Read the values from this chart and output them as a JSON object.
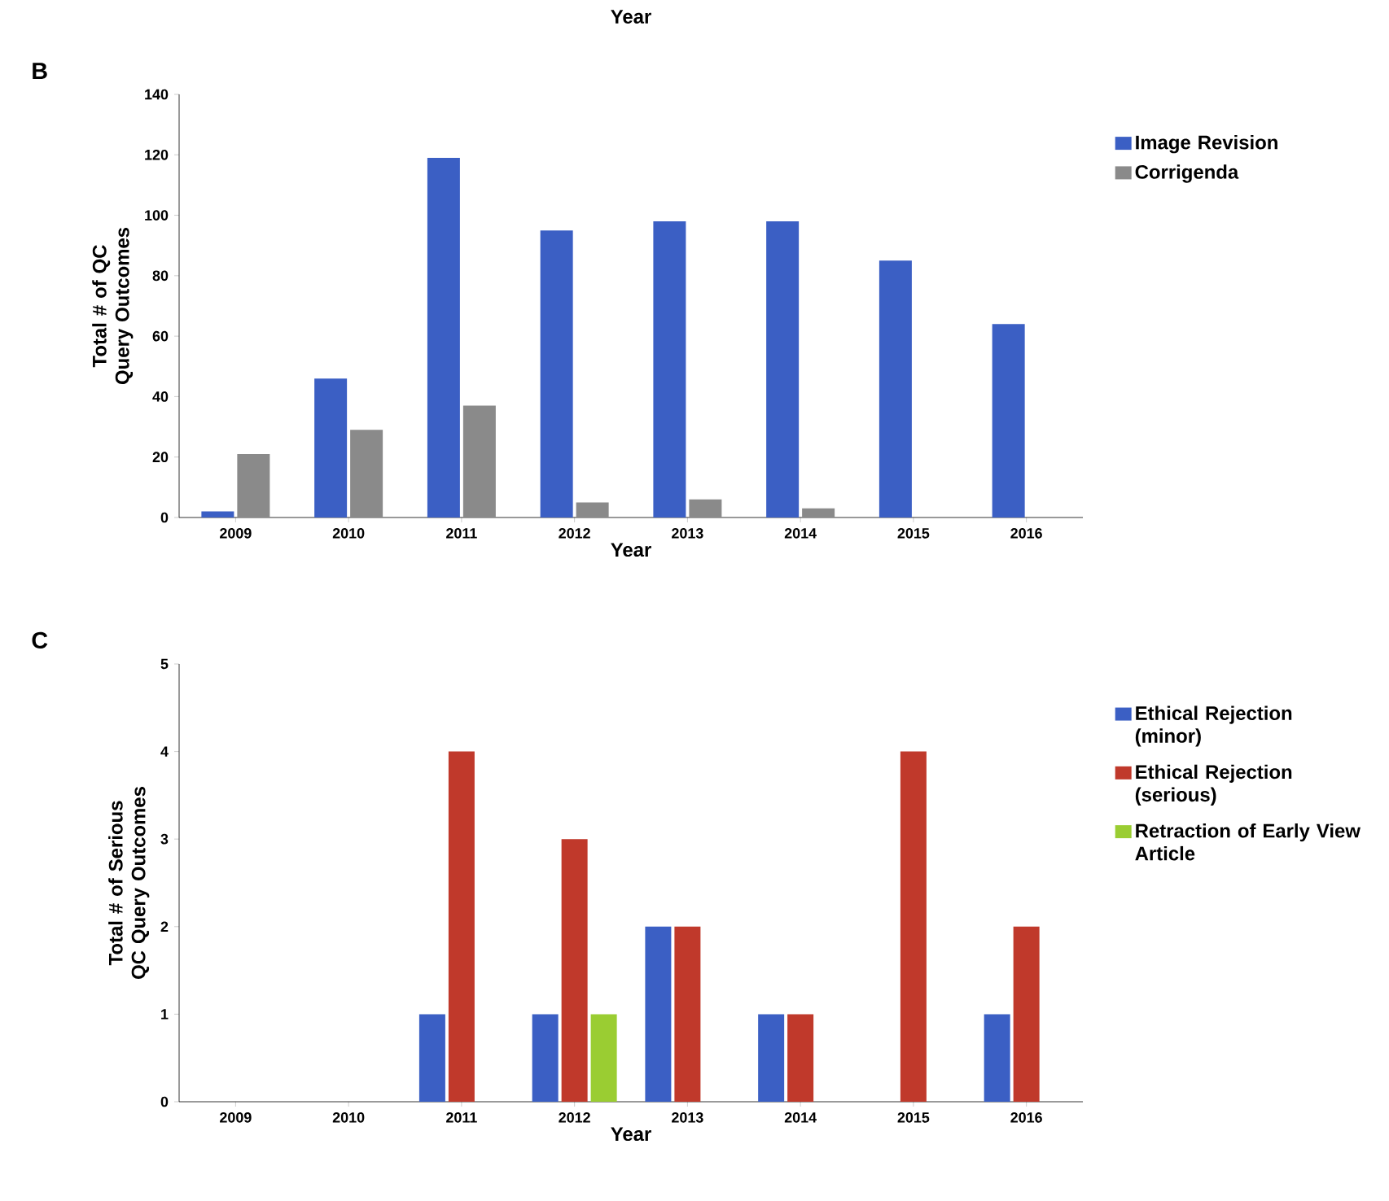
{
  "chart_data": [
    {
      "type": "bar",
      "title": "B",
      "xlabel": "Year",
      "ylabel": "Total # of QC Query Outcomes",
      "annotations": [
        "Year"
      ],
      "categories": [
        "2009",
        "2010",
        "2011",
        "2012",
        "2013",
        "2014",
        "2015",
        "2016"
      ],
      "series": [
        {
          "name": "Image Revision",
          "color": "#3b5fc4",
          "values": [
            2,
            46,
            119,
            95,
            98,
            98,
            85,
            64
          ]
        },
        {
          "name": "Corrigenda",
          "color": "#8a8a8a",
          "values": [
            21,
            29,
            37,
            5,
            6,
            3,
            0,
            0
          ]
        }
      ],
      "ylim": [
        0,
        140
      ],
      "yticks": [
        0,
        20,
        40,
        60,
        80,
        100,
        120,
        140
      ],
      "legend": "right"
    },
    {
      "type": "bar",
      "title": "C",
      "xlabel": "Year",
      "ylabel": "Total # of Serious QC Query Outcomes",
      "categories": [
        "2009",
        "2010",
        "2011",
        "2012",
        "2013",
        "2014",
        "2015",
        "2016"
      ],
      "series": [
        {
          "name": "Ethical Rejection (minor)",
          "color": "#3b5fc4",
          "values": [
            0,
            0,
            1,
            1,
            2,
            1,
            0,
            1
          ]
        },
        {
          "name": "Ethical Rejection (serious)",
          "color": "#c0392b",
          "values": [
            0,
            0,
            4,
            3,
            2,
            1,
            4,
            2
          ]
        },
        {
          "name": "Retraction of Early View Article",
          "color": "#9acd32",
          "values": [
            0,
            0,
            0,
            1,
            0,
            0,
            0,
            0
          ]
        }
      ],
      "ylim": [
        0,
        5
      ],
      "yticks": [
        0,
        1,
        2,
        3,
        4,
        5
      ],
      "legend": "right"
    }
  ]
}
